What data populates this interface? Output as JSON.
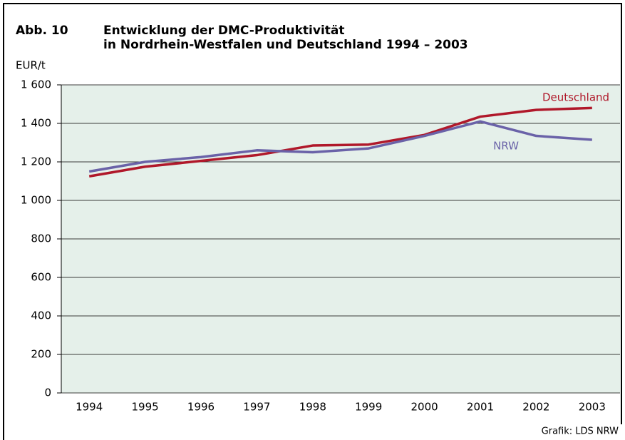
{
  "chart_data": {
    "type": "line",
    "figure_label": "Abb. 10",
    "title": "Entwicklung der DMC-Produktivität",
    "subtitle": "in Nordrhein-Westfalen und Deutschland 1994 – 2003",
    "y_label": "EUR/t",
    "source": "Grafik: LDS NRW",
    "categories": [
      "1994",
      "1995",
      "1996",
      "1997",
      "1998",
      "1999",
      "2000",
      "2001",
      "2002",
      "2003"
    ],
    "series": [
      {
        "name": "Deutschland",
        "color": "#b0182a",
        "values": [
          1125,
          1175,
          1205,
          1235,
          1285,
          1290,
          1340,
          1435,
          1470,
          1480
        ]
      },
      {
        "name": "NRW",
        "color": "#6a62a8",
        "values": [
          1150,
          1200,
          1225,
          1260,
          1250,
          1270,
          1335,
          1410,
          1335,
          1315
        ]
      }
    ],
    "ylim": [
      0,
      1600
    ],
    "yticks": [
      0,
      200,
      400,
      600,
      800,
      {
        "value": 1000,
        "label": "1 000"
      },
      {
        "value": 1200,
        "label": "1 200"
      },
      {
        "value": 1400,
        "label": "1 400"
      },
      {
        "value": 1600,
        "label": "1 600"
      }
    ],
    "grid": true,
    "background": "#e5f0ea"
  }
}
